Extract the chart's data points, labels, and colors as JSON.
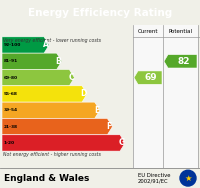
{
  "title": "Energy Efficiency Rating",
  "header_bg": "#1a7abf",
  "header_color": "#ffffff",
  "bands": [
    {
      "label": "A",
      "range": "92-100",
      "color": "#009a44"
    },
    {
      "label": "B",
      "range": "81-91",
      "color": "#55a82a"
    },
    {
      "label": "C",
      "range": "69-80",
      "color": "#8dc63f"
    },
    {
      "label": "D",
      "range": "55-68",
      "color": "#f4e20c"
    },
    {
      "label": "E",
      "range": "39-54",
      "color": "#f5a623"
    },
    {
      "label": "F",
      "range": "21-38",
      "color": "#e8631c"
    },
    {
      "label": "G",
      "range": "1-20",
      "color": "#db1f26"
    }
  ],
  "current_value": 69,
  "current_color": "#8dc63f",
  "current_band_idx": 2,
  "potential_value": 82,
  "potential_color": "#55a82a",
  "potential_band_idx": 1,
  "footer_text": "England & Wales",
  "eu_directive": "EU Directive\n2002/91/EC",
  "top_note": "Very energy efficient - lower running costs",
  "bottom_note": "Not energy efficient - higher running costs",
  "col_current": "Current",
  "col_potential": "Potential",
  "bg_color": "#f0f0e8",
  "col_bg": "#f8f8f8"
}
